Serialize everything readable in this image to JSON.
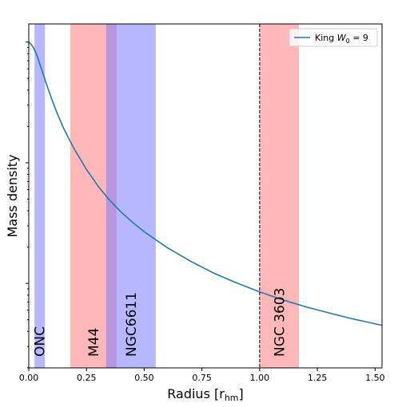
{
  "chart_data": {
    "type": "line",
    "xlabel": "Radius [r",
    "xlabel_sub": "hm",
    "xlabel_close": "]",
    "ylabel": "Mass density",
    "xlim": [
      0.0,
      1.53
    ],
    "y_scale": "log",
    "y_tick_labels": "none",
    "x_ticks": [
      0.0,
      0.25,
      0.5,
      0.75,
      1.0,
      1.25,
      1.5
    ],
    "x_tick_labels": [
      "0.00",
      "0.25",
      "0.50",
      "0.75",
      "1.00",
      "1.25",
      "1.50"
    ],
    "series": [
      {
        "name": "King W0 = 9",
        "legend_prefix": "King ",
        "legend_var": "W",
        "legend_sub": "0",
        "legend_suffix": " = 9",
        "color": "#1f77b4",
        "x": [
          0.0,
          0.01,
          0.02,
          0.03,
          0.04,
          0.05,
          0.06,
          0.08,
          0.1,
          0.12,
          0.15,
          0.18,
          0.2,
          0.25,
          0.3,
          0.35,
          0.4,
          0.45,
          0.5,
          0.6,
          0.7,
          0.8,
          0.9,
          1.0,
          1.1,
          1.2,
          1.3,
          1.4,
          1.53
        ],
        "y": [
          1.0,
          0.96,
          0.9,
          0.82,
          0.73,
          0.64,
          0.56,
          0.43,
          0.335,
          0.265,
          0.195,
          0.15,
          0.127,
          0.088,
          0.064,
          0.049,
          0.039,
          0.032,
          0.0268,
          0.0198,
          0.0153,
          0.0122,
          0.0101,
          0.0085,
          0.0073,
          0.0064,
          0.0057,
          0.0051,
          0.0045
        ]
      }
    ],
    "regions": [
      {
        "label": "ONC",
        "x0": 0.025,
        "x1": 0.07,
        "color": "#7b7bff"
      },
      {
        "label": "M44",
        "x0": 0.18,
        "x1": 0.38,
        "color": "#ff7b7b"
      },
      {
        "label": "NGC6611",
        "x0": 0.335,
        "x1": 0.55,
        "color": "#7b7bff"
      },
      {
        "label": "NGC 3603",
        "x0": 1.0,
        "x1": 1.17,
        "color": "#ff7b7b"
      }
    ],
    "region_opacity": 0.55,
    "vline": {
      "x": 1.0,
      "style": "dashed",
      "color": "#000000"
    },
    "legend_position": "top-right",
    "grid": false
  }
}
